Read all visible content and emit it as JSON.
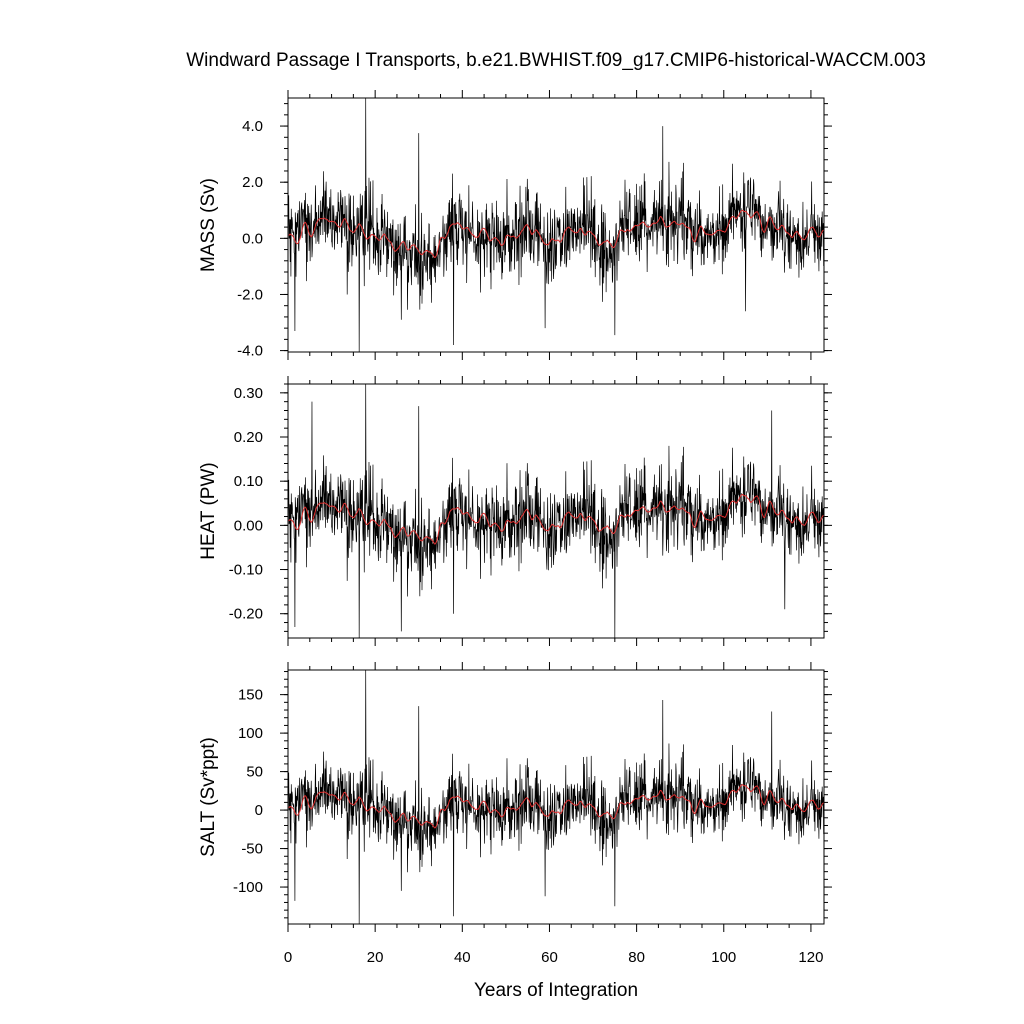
{
  "chart_data": {
    "title": "Windward Passage I Transports, b.e21.BWHIST.f09_g17.CMIP6-historical-WACCM.003",
    "type": "line",
    "xlabel": "Years of Integration",
    "x_range": [
      0,
      123
    ],
    "x_ticks": [
      0,
      20,
      40,
      60,
      80,
      100,
      120
    ],
    "x_tick_labels": [
      "0",
      "20",
      "40",
      "60",
      "80",
      "100",
      "120"
    ],
    "colors": {
      "raw": "#000000",
      "smooth": "#e03030"
    },
    "panels": [
      {
        "id": "mass",
        "ylabel": "MASS (Sv)",
        "ylim": [
          -4.05,
          5.0
        ],
        "y_ticks": [
          4.0,
          2.0,
          0.0,
          -2.0,
          -4.0
        ],
        "y_tick_labels": [
          "4.0",
          "2.0",
          "0.0",
          "-2.0",
          "-4.0"
        ],
        "scale": 1,
        "series": [
          {
            "name": "",
            "kind": "monthly",
            "mean": 0.25,
            "std": 0.85
          },
          {
            "name": "",
            "kind": "annual-mean",
            "mean": 0.25,
            "std": 0.18
          }
        ],
        "extremes": [
          {
            "x": 1.6,
            "y": -3.3
          },
          {
            "x": 16.3,
            "y": -4.05
          },
          {
            "x": 17.8,
            "y": 5.0
          },
          {
            "x": 26.0,
            "y": -2.9
          },
          {
            "x": 30.0,
            "y": 3.75
          },
          {
            "x": 38.0,
            "y": -3.8
          },
          {
            "x": 59.0,
            "y": -3.2
          },
          {
            "x": 75.0,
            "y": -3.45
          },
          {
            "x": 86.0,
            "y": 4.0
          },
          {
            "x": 105.0,
            "y": -2.6
          }
        ]
      },
      {
        "id": "heat",
        "ylabel": "HEAT (PW)",
        "ylim": [
          -0.255,
          0.32
        ],
        "y_ticks": [
          0.3,
          0.2,
          0.1,
          0.0,
          -0.1,
          -0.2
        ],
        "y_tick_labels": [
          "0.30",
          "0.20",
          "0.10",
          "0.00",
          "-0.10",
          "-0.20"
        ],
        "scale": 0.065,
        "series": [
          {
            "name": "",
            "kind": "monthly",
            "mean": 0.02,
            "std": 0.055
          },
          {
            "name": "",
            "kind": "annual-mean",
            "mean": 0.02,
            "std": 0.012
          }
        ],
        "extremes": [
          {
            "x": 1.6,
            "y": -0.23
          },
          {
            "x": 5.5,
            "y": 0.28
          },
          {
            "x": 16.3,
            "y": -0.255
          },
          {
            "x": 17.8,
            "y": 0.32
          },
          {
            "x": 26.0,
            "y": -0.24
          },
          {
            "x": 30.0,
            "y": 0.27
          },
          {
            "x": 38.0,
            "y": -0.2
          },
          {
            "x": 75.0,
            "y": -0.255
          },
          {
            "x": 111.0,
            "y": 0.26
          },
          {
            "x": 114.0,
            "y": -0.19
          }
        ]
      },
      {
        "id": "salt",
        "ylabel": "SALT (Sv*ppt)",
        "ylim": [
          -148,
          182
        ],
        "y_ticks": [
          150,
          100,
          50,
          0,
          -50,
          -100
        ],
        "y_tick_labels": [
          "150",
          "100",
          "50",
          "0",
          "-50",
          "-100"
        ],
        "scale": 31,
        "series": [
          {
            "name": "",
            "kind": "monthly",
            "mean": 8.0,
            "std": 27.0
          },
          {
            "name": "",
            "kind": "annual-mean",
            "mean": 8.0,
            "std": 6.0
          }
        ],
        "extremes": [
          {
            "x": 1.6,
            "y": -118
          },
          {
            "x": 16.3,
            "y": -148
          },
          {
            "x": 17.8,
            "y": 182
          },
          {
            "x": 26.0,
            "y": -105
          },
          {
            "x": 30.0,
            "y": 135
          },
          {
            "x": 38.0,
            "y": -138
          },
          {
            "x": 59.0,
            "y": -112
          },
          {
            "x": 75.0,
            "y": -125
          },
          {
            "x": 86.0,
            "y": 143
          },
          {
            "x": 111.0,
            "y": 128
          }
        ]
      }
    ]
  }
}
